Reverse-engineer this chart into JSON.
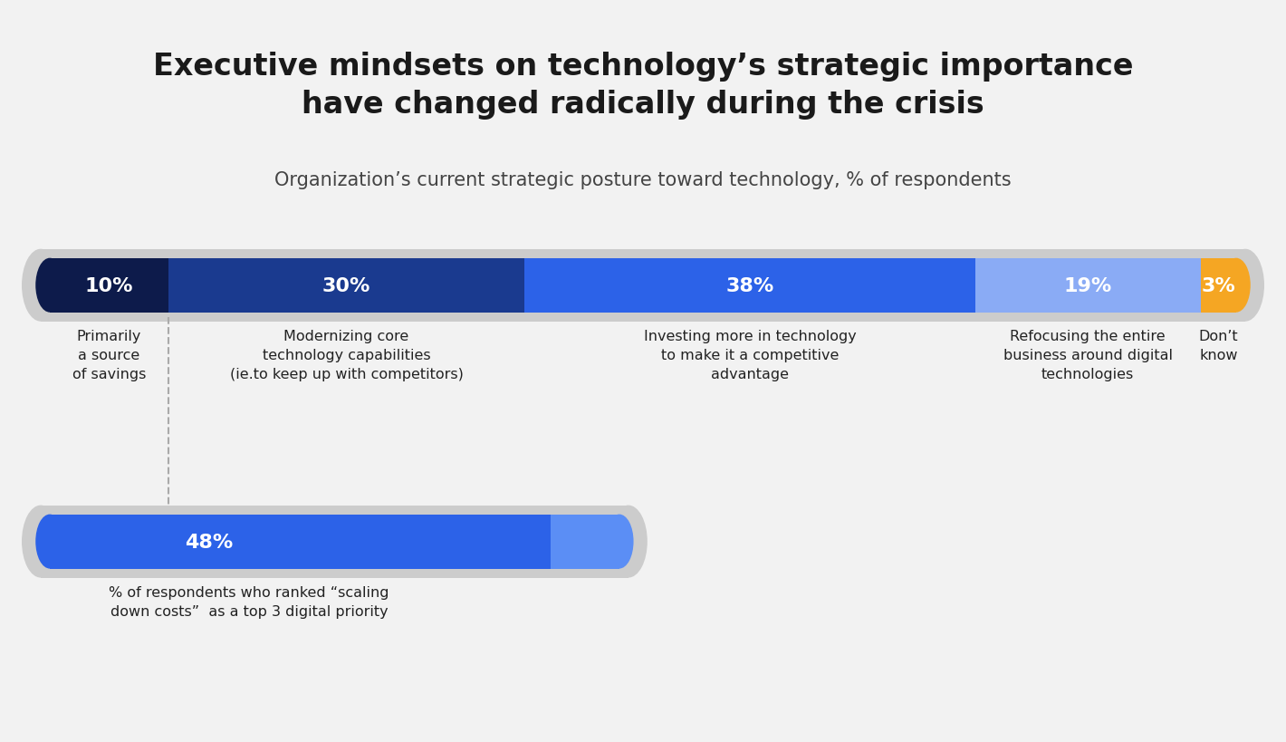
{
  "title": "Executive mindsets on technology’s strategic importance\nhave changed radically during the crisis",
  "subtitle": "Organization’s current strategic posture toward technology, % of respondents",
  "background_color": "#f2f2f2",
  "segments": [
    {
      "value": 10,
      "color": "#0d1b4b",
      "label": "10%"
    },
    {
      "value": 30,
      "color": "#1a3a8f",
      "label": "30%"
    },
    {
      "value": 38,
      "color": "#2c62e8",
      "label": "38%"
    },
    {
      "value": 19,
      "color": "#8aabf5",
      "label": "19%"
    },
    {
      "value": 3,
      "color": "#f5a623",
      "label": "3%"
    }
  ],
  "labels": [
    "Primarily\na source\nof savings",
    "Modernizing core\ntechnology capabilities\n(ie.to keep up with competitors)",
    "Investing more in technology\nto make it a competitive\nadvantage",
    "Refocusing the entire\nbusiness around digital\ntechnologies",
    "Don’t\nknow"
  ],
  "bar2_color": "#2c62e8",
  "bar2_label": "48%",
  "bar2_caption": "% of respondents who ranked “scaling\ndown costs”  as a top 3 digital priority",
  "track_color": "#cccccc",
  "dashed_line_color": "#aaaaaa",
  "title_fontsize": 24,
  "subtitle_fontsize": 15,
  "label_fontsize": 11.5,
  "bar_label_fontsize": 16
}
